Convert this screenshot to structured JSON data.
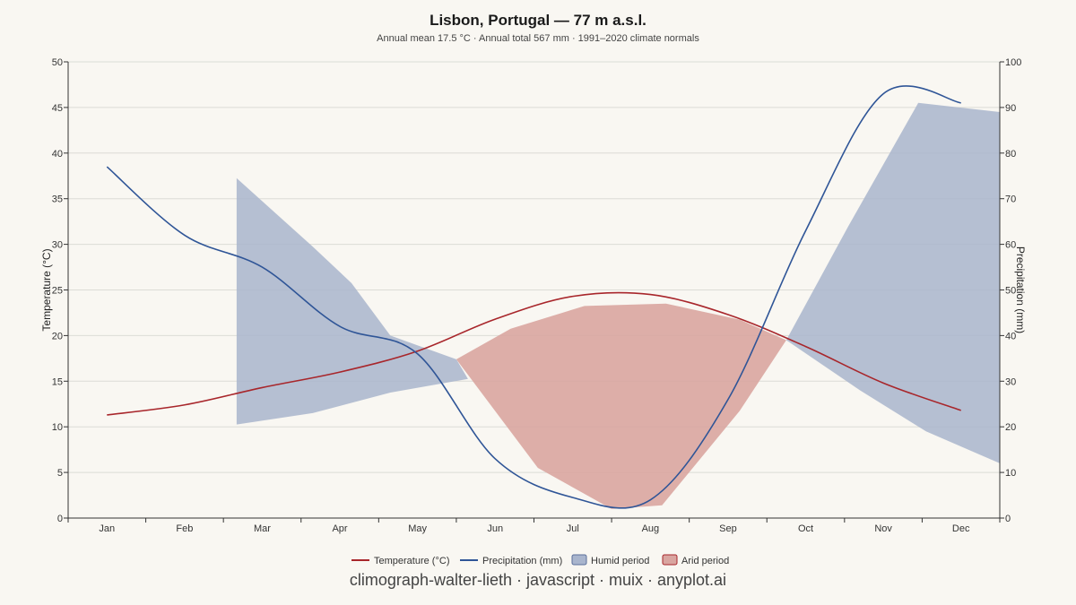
{
  "title": "Lisbon, Portugal — 77 m a.s.l.",
  "subtitle": "Annual mean 17.5 °C · Annual total 567 mm · 1991–2020 climate normals",
  "caption": "climograph-walter-lieth · javascript · muix · anyplot.ai",
  "colors": {
    "background": "#f9f7f2",
    "temperature": "#a8262b",
    "precipitation": "#2f5597",
    "humid": "#a9b5cd",
    "arid": "#d9a5a0",
    "humid_border": "#5a6f9a",
    "arid_border": "#a8262b",
    "grid": "#dcdcd6"
  },
  "chart_data": {
    "type": "line",
    "categories": [
      "Jan",
      "Feb",
      "Mar",
      "Apr",
      "May",
      "Jun",
      "Jul",
      "Aug",
      "Sep",
      "Oct",
      "Nov",
      "Dec"
    ],
    "y_left": {
      "label": "Temperature (°C)",
      "ticks": [
        0,
        5,
        10,
        15,
        20,
        25,
        30,
        35,
        40,
        45,
        50
      ],
      "ylim": [
        0,
        50
      ]
    },
    "y_right": {
      "label": "Precipitation (mm)",
      "ticks": [
        0,
        10,
        20,
        30,
        40,
        50,
        60,
        70,
        80,
        90,
        100
      ],
      "ylim": [
        0,
        100
      ]
    },
    "grid": true,
    "series": [
      {
        "name": "Temperature (°C)",
        "axis": "left",
        "values": [
          11.3,
          12.4,
          14.3,
          16.0,
          18.3,
          21.8,
          24.3,
          24.5,
          22.3,
          18.8,
          14.8,
          11.8
        ]
      },
      {
        "name": "Precipitation (mm)",
        "axis": "right",
        "values": [
          77,
          62,
          55,
          42,
          36,
          13,
          4.5,
          4,
          26,
          63,
          93,
          91
        ]
      }
    ],
    "bands": [
      {
        "name": "Humid period",
        "upper": [
          [
            1.67,
            74.5
          ],
          [
            2.65,
            59.5
          ],
          [
            3.15,
            51.5
          ],
          [
            3.65,
            40.0
          ],
          [
            4.5,
            34.8
          ]
        ],
        "lower": [
          [
            1.67,
            20.5
          ],
          [
            2.65,
            23.0
          ],
          [
            3.65,
            27.5
          ],
          [
            4.65,
            30.5
          ],
          [
            4.5,
            34.8
          ]
        ]
      },
      {
        "name": "Arid period",
        "upper": [
          [
            4.5,
            34.8
          ],
          [
            5.2,
            41.5
          ],
          [
            6.15,
            46.5
          ],
          [
            7.2,
            47.0
          ],
          [
            8.15,
            43.5
          ],
          [
            8.75,
            39.0
          ]
        ],
        "lower": [
          [
            4.5,
            34.8
          ],
          [
            5.55,
            11.0
          ],
          [
            6.5,
            2.0
          ],
          [
            7.15,
            2.8
          ],
          [
            8.15,
            23.5
          ],
          [
            8.75,
            39.0
          ]
        ]
      },
      {
        "name": "Humid period",
        "upper": [
          [
            8.75,
            39.0
          ],
          [
            9.55,
            64.0
          ],
          [
            10.45,
            91.0
          ],
          [
            11.5,
            89.0
          ]
        ],
        "lower": [
          [
            8.75,
            39.0
          ],
          [
            9.7,
            28.0
          ],
          [
            10.55,
            19.0
          ],
          [
            11.5,
            12.0
          ]
        ]
      }
    ],
    "legend": {
      "position": "bottom",
      "items": [
        {
          "label": "Temperature (°C)",
          "kind": "line",
          "color": "#a8262b"
        },
        {
          "label": "Precipitation (mm)",
          "kind": "line",
          "color": "#2f5597"
        },
        {
          "label": "Humid period",
          "kind": "box",
          "color": "#a9b5cd"
        },
        {
          "label": "Arid period",
          "kind": "box",
          "color": "#d9a5a0"
        }
      ]
    }
  }
}
